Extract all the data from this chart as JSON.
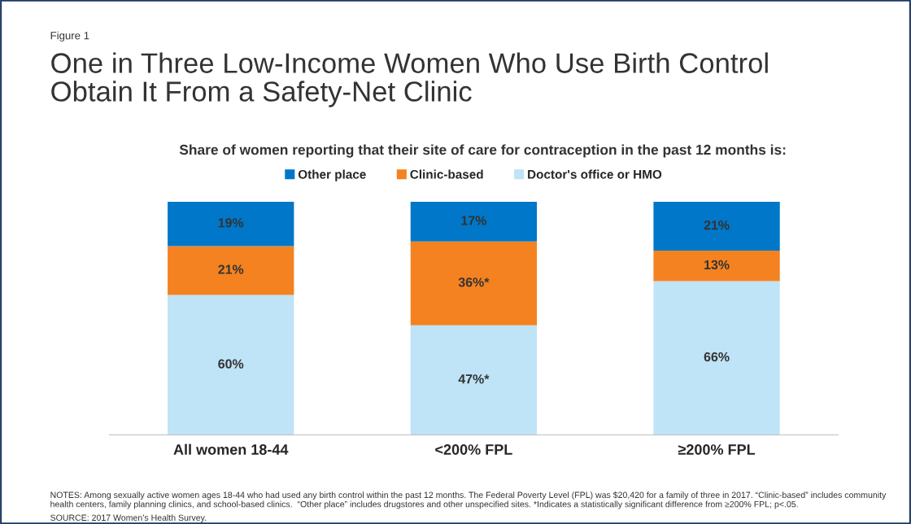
{
  "chart_data": {
    "type": "bar",
    "stacked": true,
    "title": "One in Three Low-Income Women Who Use Birth Control\nObtain It From a Safety-Net Clinic",
    "subtitle": "Share of women reporting that their site of care for contraception in the past 12 months is:",
    "categories": [
      "All women 18-44",
      "<200% FPL",
      "≥200% FPL"
    ],
    "series": [
      {
        "name": "Doctor's office or HMO",
        "color": "#bfe3f7",
        "values": [
          60,
          47,
          66
        ],
        "value_labels": [
          "60%",
          "47%*",
          "66%"
        ]
      },
      {
        "name": "Clinic-based",
        "color": "#f58220",
        "values": [
          21,
          36,
          13
        ],
        "value_labels": [
          "21%",
          "36%*",
          "13%"
        ]
      },
      {
        "name": "Other place",
        "color": "#0077c8",
        "values": [
          19,
          17,
          21
        ],
        "value_labels": [
          "19%",
          "17%",
          "21%"
        ]
      }
    ],
    "legend": "top",
    "annotations": [
      "Figure 1",
      "NOTES: Among sexually active women ages 18-44 who had used any birth control within the past 12 months. The Federal Poverty Level (FPL) was $20,420 for a family of three in 2017. “Clinic-based” includes community health centers, family planning clinics, and school-based clinics.  “Other place” includes drugstores and other unspecified sites. *Indicates a statistically significant difference from ≥200% FPL; p<.05.",
      "SOURCE: 2017 Women’s Health Survey."
    ]
  }
}
